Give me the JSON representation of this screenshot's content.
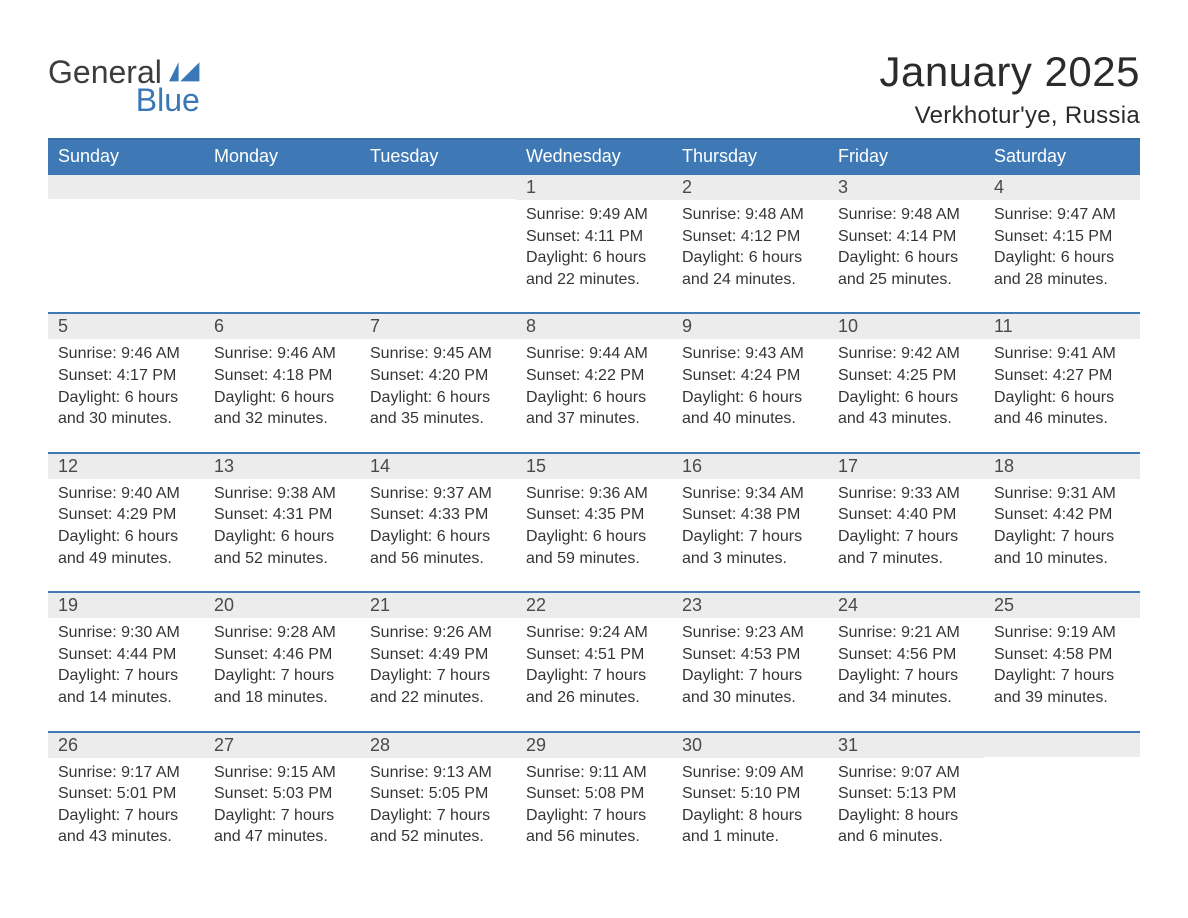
{
  "logo": {
    "word1": "General",
    "word2": "Blue"
  },
  "title": "January 2025",
  "location": "Verkhotur'ye, Russia",
  "colors": {
    "header_bg": "#3e79b6",
    "header_text": "#ffffff",
    "daynum_bg": "#ececec",
    "daynum_text": "#4a4a4a",
    "body_text": "#353535",
    "week_border": "#3e79b6",
    "page_bg": "#ffffff",
    "logo_accent": "#3a77b7"
  },
  "weekday_labels": [
    "Sunday",
    "Monday",
    "Tuesday",
    "Wednesday",
    "Thursday",
    "Friday",
    "Saturday"
  ],
  "weeks": [
    [
      {
        "empty": true
      },
      {
        "empty": true
      },
      {
        "empty": true
      },
      {
        "num": "1",
        "sunrise": "Sunrise: 9:49 AM",
        "sunset": "Sunset: 4:11 PM",
        "day1": "Daylight: 6 hours",
        "day2": "and 22 minutes."
      },
      {
        "num": "2",
        "sunrise": "Sunrise: 9:48 AM",
        "sunset": "Sunset: 4:12 PM",
        "day1": "Daylight: 6 hours",
        "day2": "and 24 minutes."
      },
      {
        "num": "3",
        "sunrise": "Sunrise: 9:48 AM",
        "sunset": "Sunset: 4:14 PM",
        "day1": "Daylight: 6 hours",
        "day2": "and 25 minutes."
      },
      {
        "num": "4",
        "sunrise": "Sunrise: 9:47 AM",
        "sunset": "Sunset: 4:15 PM",
        "day1": "Daylight: 6 hours",
        "day2": "and 28 minutes."
      }
    ],
    [
      {
        "num": "5",
        "sunrise": "Sunrise: 9:46 AM",
        "sunset": "Sunset: 4:17 PM",
        "day1": "Daylight: 6 hours",
        "day2": "and 30 minutes."
      },
      {
        "num": "6",
        "sunrise": "Sunrise: 9:46 AM",
        "sunset": "Sunset: 4:18 PM",
        "day1": "Daylight: 6 hours",
        "day2": "and 32 minutes."
      },
      {
        "num": "7",
        "sunrise": "Sunrise: 9:45 AM",
        "sunset": "Sunset: 4:20 PM",
        "day1": "Daylight: 6 hours",
        "day2": "and 35 minutes."
      },
      {
        "num": "8",
        "sunrise": "Sunrise: 9:44 AM",
        "sunset": "Sunset: 4:22 PM",
        "day1": "Daylight: 6 hours",
        "day2": "and 37 minutes."
      },
      {
        "num": "9",
        "sunrise": "Sunrise: 9:43 AM",
        "sunset": "Sunset: 4:24 PM",
        "day1": "Daylight: 6 hours",
        "day2": "and 40 minutes."
      },
      {
        "num": "10",
        "sunrise": "Sunrise: 9:42 AM",
        "sunset": "Sunset: 4:25 PM",
        "day1": "Daylight: 6 hours",
        "day2": "and 43 minutes."
      },
      {
        "num": "11",
        "sunrise": "Sunrise: 9:41 AM",
        "sunset": "Sunset: 4:27 PM",
        "day1": "Daylight: 6 hours",
        "day2": "and 46 minutes."
      }
    ],
    [
      {
        "num": "12",
        "sunrise": "Sunrise: 9:40 AM",
        "sunset": "Sunset: 4:29 PM",
        "day1": "Daylight: 6 hours",
        "day2": "and 49 minutes."
      },
      {
        "num": "13",
        "sunrise": "Sunrise: 9:38 AM",
        "sunset": "Sunset: 4:31 PM",
        "day1": "Daylight: 6 hours",
        "day2": "and 52 minutes."
      },
      {
        "num": "14",
        "sunrise": "Sunrise: 9:37 AM",
        "sunset": "Sunset: 4:33 PM",
        "day1": "Daylight: 6 hours",
        "day2": "and 56 minutes."
      },
      {
        "num": "15",
        "sunrise": "Sunrise: 9:36 AM",
        "sunset": "Sunset: 4:35 PM",
        "day1": "Daylight: 6 hours",
        "day2": "and 59 minutes."
      },
      {
        "num": "16",
        "sunrise": "Sunrise: 9:34 AM",
        "sunset": "Sunset: 4:38 PM",
        "day1": "Daylight: 7 hours",
        "day2": "and 3 minutes."
      },
      {
        "num": "17",
        "sunrise": "Sunrise: 9:33 AM",
        "sunset": "Sunset: 4:40 PM",
        "day1": "Daylight: 7 hours",
        "day2": "and 7 minutes."
      },
      {
        "num": "18",
        "sunrise": "Sunrise: 9:31 AM",
        "sunset": "Sunset: 4:42 PM",
        "day1": "Daylight: 7 hours",
        "day2": "and 10 minutes."
      }
    ],
    [
      {
        "num": "19",
        "sunrise": "Sunrise: 9:30 AM",
        "sunset": "Sunset: 4:44 PM",
        "day1": "Daylight: 7 hours",
        "day2": "and 14 minutes."
      },
      {
        "num": "20",
        "sunrise": "Sunrise: 9:28 AM",
        "sunset": "Sunset: 4:46 PM",
        "day1": "Daylight: 7 hours",
        "day2": "and 18 minutes."
      },
      {
        "num": "21",
        "sunrise": "Sunrise: 9:26 AM",
        "sunset": "Sunset: 4:49 PM",
        "day1": "Daylight: 7 hours",
        "day2": "and 22 minutes."
      },
      {
        "num": "22",
        "sunrise": "Sunrise: 9:24 AM",
        "sunset": "Sunset: 4:51 PM",
        "day1": "Daylight: 7 hours",
        "day2": "and 26 minutes."
      },
      {
        "num": "23",
        "sunrise": "Sunrise: 9:23 AM",
        "sunset": "Sunset: 4:53 PM",
        "day1": "Daylight: 7 hours",
        "day2": "and 30 minutes."
      },
      {
        "num": "24",
        "sunrise": "Sunrise: 9:21 AM",
        "sunset": "Sunset: 4:56 PM",
        "day1": "Daylight: 7 hours",
        "day2": "and 34 minutes."
      },
      {
        "num": "25",
        "sunrise": "Sunrise: 9:19 AM",
        "sunset": "Sunset: 4:58 PM",
        "day1": "Daylight: 7 hours",
        "day2": "and 39 minutes."
      }
    ],
    [
      {
        "num": "26",
        "sunrise": "Sunrise: 9:17 AM",
        "sunset": "Sunset: 5:01 PM",
        "day1": "Daylight: 7 hours",
        "day2": "and 43 minutes."
      },
      {
        "num": "27",
        "sunrise": "Sunrise: 9:15 AM",
        "sunset": "Sunset: 5:03 PM",
        "day1": "Daylight: 7 hours",
        "day2": "and 47 minutes."
      },
      {
        "num": "28",
        "sunrise": "Sunrise: 9:13 AM",
        "sunset": "Sunset: 5:05 PM",
        "day1": "Daylight: 7 hours",
        "day2": "and 52 minutes."
      },
      {
        "num": "29",
        "sunrise": "Sunrise: 9:11 AM",
        "sunset": "Sunset: 5:08 PM",
        "day1": "Daylight: 7 hours",
        "day2": "and 56 minutes."
      },
      {
        "num": "30",
        "sunrise": "Sunrise: 9:09 AM",
        "sunset": "Sunset: 5:10 PM",
        "day1": "Daylight: 8 hours",
        "day2": "and 1 minute."
      },
      {
        "num": "31",
        "sunrise": "Sunrise: 9:07 AM",
        "sunset": "Sunset: 5:13 PM",
        "day1": "Daylight: 8 hours",
        "day2": "and 6 minutes."
      },
      {
        "empty": true
      }
    ]
  ]
}
